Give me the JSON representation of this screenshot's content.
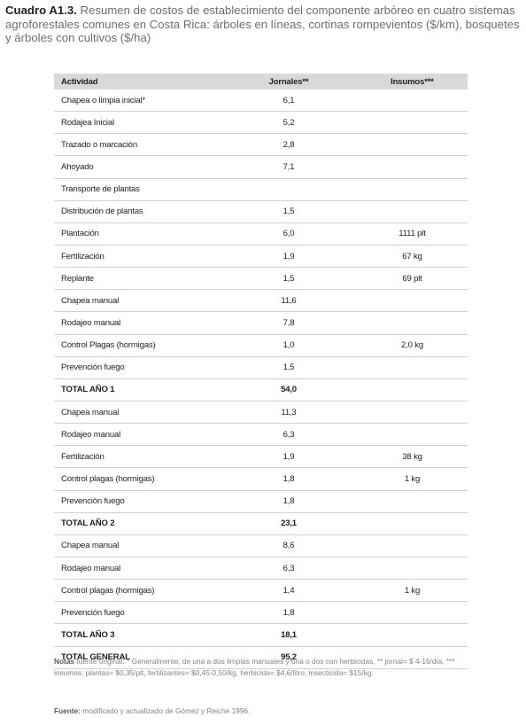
{
  "caption": {
    "label": "Cuadro A1.3.",
    "text": "Resumen de costos de establecimiento del componente arbóreo en cuatro sistemas agroforestales comunes en Costa Rica: árboles en líneas, cortinas rompevientos ($/km), bosquetes y árboles con cultivos ($/ha)"
  },
  "table": {
    "headers": [
      "Actividad",
      "Jornales**",
      "Insumos***"
    ],
    "rows": [
      {
        "actividad": "Chapea o limpia inicial*",
        "jornales": "6,1",
        "insumos": "",
        "total": false
      },
      {
        "actividad": "Rodajea Inicial",
        "jornales": "5,2",
        "insumos": "",
        "total": false
      },
      {
        "actividad": "Trazado o marcación",
        "jornales": "2,8",
        "insumos": "",
        "total": false
      },
      {
        "actividad": "Ahoyado",
        "jornales": "7,1",
        "insumos": "",
        "total": false
      },
      {
        "actividad": "Transporte de plantas",
        "jornales": "",
        "insumos": "",
        "total": false
      },
      {
        "actividad": "Distribución de plantas",
        "jornales": "1,5",
        "insumos": "",
        "total": false
      },
      {
        "actividad": "Plantación",
        "jornales": "6,0",
        "insumos": "1111 plt",
        "total": false
      },
      {
        "actividad": "Fertilización",
        "jornales": "1,9",
        "insumos": "67 kg",
        "total": false
      },
      {
        "actividad": "Replante",
        "jornales": "1,5",
        "insumos": "69 plt",
        "total": false
      },
      {
        "actividad": "Chapea manual",
        "jornales": "11,6",
        "insumos": "",
        "total": false
      },
      {
        "actividad": "Rodajeo manual",
        "jornales": "7,8",
        "insumos": "",
        "total": false
      },
      {
        "actividad": "Control Plagas (hormigas)",
        "jornales": "1,0",
        "insumos": "2,0 kg",
        "total": false
      },
      {
        "actividad": "Prevención fuego",
        "jornales": "1,5",
        "insumos": "",
        "total": false
      },
      {
        "actividad": "TOTAL AÑO 1",
        "jornales": "54,0",
        "insumos": "",
        "total": true
      },
      {
        "actividad": "Chapea manual",
        "jornales": "11,3",
        "insumos": "",
        "total": false
      },
      {
        "actividad": "Rodajeo manual",
        "jornales": "6,3",
        "insumos": "",
        "total": false
      },
      {
        "actividad": "Fertilización",
        "jornales": "1,9",
        "insumos": "38 kg",
        "total": false
      },
      {
        "actividad": "Control plagas (hormigas)",
        "jornales": "1,8",
        "insumos": "1 kg",
        "total": false
      },
      {
        "actividad": "Prevención fuego",
        "jornales": "1,8",
        "insumos": "",
        "total": false
      },
      {
        "actividad": "TOTAL AÑO 2",
        "jornales": "23,1",
        "insumos": "",
        "total": true
      },
      {
        "actividad": "Chapea manual",
        "jornales": "8,6",
        "insumos": "",
        "total": false
      },
      {
        "actividad": "Rodajeo manual",
        "jornales": "6,3",
        "insumos": "",
        "total": false
      },
      {
        "actividad": "Control plagas (hormigas)",
        "jornales": "1,4",
        "insumos": "1 kg",
        "total": false
      },
      {
        "actividad": "Prevención fuego",
        "jornales": "1,8",
        "insumos": "",
        "total": false
      },
      {
        "actividad": "TOTAL AÑO 3",
        "jornales": "18,1",
        "insumos": "",
        "total": true
      },
      {
        "actividad": "TOTAL GENERAL",
        "jornales": "95,2",
        "insumos": "",
        "total": true
      }
    ]
  },
  "notes": {
    "label": "Notas",
    "text": "fuente original: * Generalmente, de una a dos limpias manuales y una o dos con herbicidas, ** jornal= $ 4-16/día, *** insumos: plantas= $0,35/plt, fertilizantes= $0,45-0,50/kg, herbicida= $4,6/litro, insecticida= $15/kg."
  },
  "source": {
    "label": "Fuente:",
    "text": "modificado y actualizado de Gómez y Reiche 1996."
  },
  "colors": {
    "header_bg": "#d9d9d9",
    "row_rule": "#d1d3d4",
    "caption_text": "#6d6e71",
    "note_text": "#808285"
  }
}
